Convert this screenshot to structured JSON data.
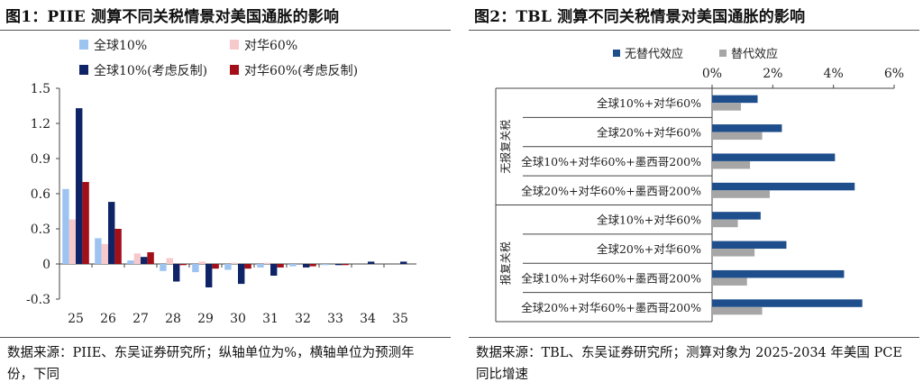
{
  "left": {
    "title": "图1：PIIE 测算不同关税情景对美国通胀的影响",
    "source": "数据来源：PIIE、东吴证券研究所；纵轴单位为%，横轴单位为预测年份，下同",
    "chart_data": {
      "type": "bar",
      "categories": [
        "25",
        "26",
        "27",
        "28",
        "29",
        "30",
        "31",
        "32",
        "33",
        "34",
        "35"
      ],
      "ylim": [
        -0.3,
        1.5
      ],
      "yticks": [
        "1.5",
        "1.2",
        "0.9",
        "0.6",
        "0.3",
        "0",
        "-0.3"
      ],
      "ytick_values": [
        1.5,
        1.2,
        0.9,
        0.6,
        0.3,
        0,
        -0.3
      ],
      "legend_position": "top",
      "series": [
        {
          "name": "全球10%",
          "color": "#9dc3f0",
          "values": [
            0.64,
            0.22,
            0.03,
            -0.06,
            -0.07,
            -0.05,
            -0.03,
            -0.02,
            -0.01,
            0.0,
            0.0
          ]
        },
        {
          "name": "对华60%",
          "color": "#f6c9cb",
          "values": [
            0.38,
            0.17,
            0.09,
            0.05,
            0.02,
            0.01,
            0.01,
            0.0,
            0.0,
            0.0,
            0.0
          ]
        },
        {
          "name": "全球10%(考虑反制)",
          "color": "#0f2466",
          "values": [
            1.33,
            0.53,
            0.06,
            -0.15,
            -0.2,
            -0.17,
            -0.1,
            -0.03,
            -0.01,
            0.02,
            0.02
          ]
        },
        {
          "name": "对华60%(考虑反制)",
          "color": "#a30f18",
          "values": [
            0.7,
            0.3,
            0.1,
            -0.01,
            -0.04,
            -0.04,
            -0.03,
            -0.02,
            -0.01,
            0.0,
            0.0
          ]
        }
      ]
    }
  },
  "right": {
    "title": "图2：TBL 测算不同关税情景对美国通胀的影响",
    "source": "数据来源：TBL、东吴证券研究所；测算对象为 2025-2034 年美国 PCE 同比增速",
    "chart_data": {
      "type": "bar",
      "orientation": "horizontal",
      "xlim": [
        0,
        6
      ],
      "xticks": [
        "0%",
        "2%",
        "4%",
        "6%"
      ],
      "xtick_values": [
        0,
        2,
        4,
        6
      ],
      "legend_position": "top",
      "groups": [
        "无报复关税",
        "报复关税"
      ],
      "categories": [
        "全球10%+对华60%",
        "全球20%+对华60%",
        "全球10%+对华60%+墨西哥200%",
        "全球20%+对华60%+墨西哥200%",
        "全球10%+对华60%",
        "全球20%+对华60%",
        "全球10%+对华60%+墨西哥200%",
        "全球20%+对华60%+墨西哥200%"
      ],
      "series": [
        {
          "name": "无替代效应",
          "color": "#1f4e8c",
          "values": [
            1.5,
            2.3,
            4.05,
            4.7,
            1.6,
            2.45,
            4.35,
            4.95
          ]
        },
        {
          "name": "替代效应",
          "color": "#a6a6a6",
          "values": [
            0.95,
            1.65,
            1.25,
            1.9,
            0.85,
            1.4,
            1.15,
            1.65
          ]
        }
      ]
    }
  }
}
